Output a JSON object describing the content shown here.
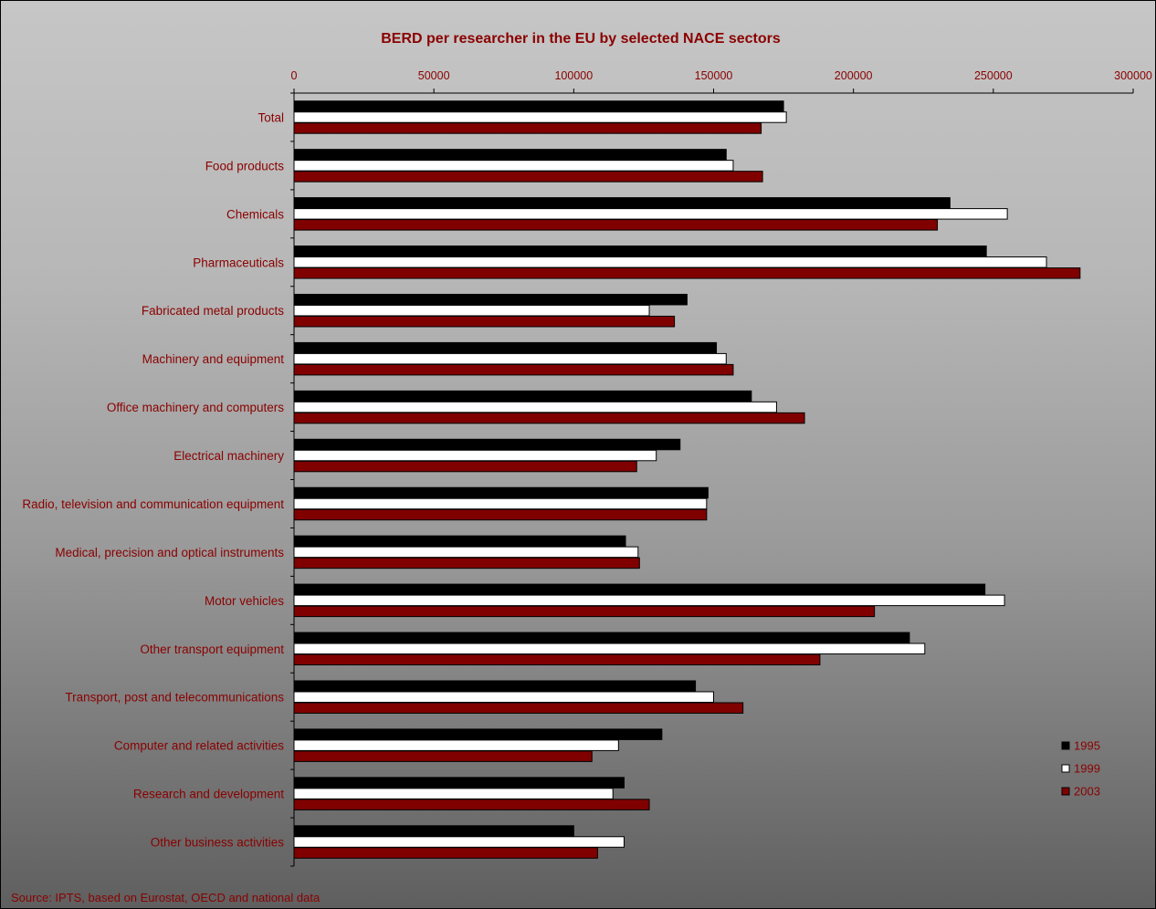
{
  "chart_data": {
    "type": "bar",
    "orientation": "horizontal",
    "title": "BERD per researcher in the EU by selected NACE sectors",
    "source": "Source: IPTS, based on Eurostat, OECD and national data",
    "xlim": [
      0,
      300000
    ],
    "xticks": [
      "0",
      "50000",
      "100000",
      "150000",
      "200000",
      "250000",
      "300000"
    ],
    "xtick_values": [
      0,
      50000,
      100000,
      150000,
      200000,
      250000,
      300000
    ],
    "x_axis_position": "top",
    "grid": false,
    "legend_position": "bottom-right",
    "categories": [
      "Total",
      "Food products",
      "Chemicals",
      "Pharmaceuticals",
      "Fabricated metal products",
      "Machinery and equipment",
      "Office machinery and computers",
      "Electrical machinery",
      "Radio, television and communication equipment",
      "Medical, precision and optical instruments",
      "Motor vehicles",
      "Other transport equipment",
      "Transport, post and telecommunications",
      "Computer and related activities",
      "Research and development",
      "Other business activities"
    ],
    "series": [
      {
        "name": "1995",
        "color": "#000000",
        "values": [
          175000,
          154500,
          234500,
          247500,
          140500,
          151000,
          163500,
          138000,
          148000,
          118500,
          247000,
          220000,
          143500,
          131500,
          118000,
          100000
        ]
      },
      {
        "name": "1999",
        "color": "#ffffff",
        "values": [
          176000,
          157000,
          255000,
          269000,
          127000,
          154500,
          172500,
          129500,
          147500,
          123000,
          254000,
          225500,
          150000,
          116000,
          114000,
          118000
        ]
      },
      {
        "name": "2003",
        "color": "#800000",
        "values": [
          167000,
          167500,
          230000,
          281000,
          136000,
          157000,
          182500,
          122500,
          147500,
          123500,
          207500,
          188000,
          160500,
          106500,
          127000,
          108500
        ]
      }
    ]
  }
}
